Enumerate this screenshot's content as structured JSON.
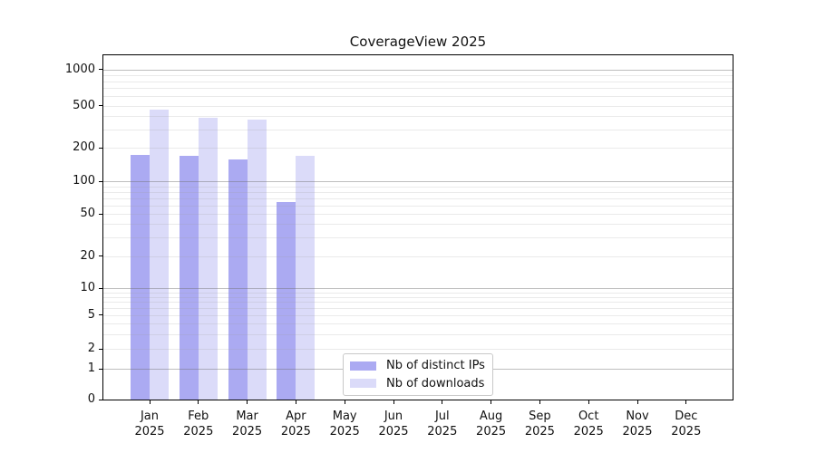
{
  "title": "CoverageView 2025",
  "chart_data": {
    "type": "bar",
    "title": "CoverageView 2025",
    "year": "2025",
    "categories": [
      "Jan",
      "Feb",
      "Mar",
      "Apr",
      "May",
      "Jun",
      "Jul",
      "Aug",
      "Sep",
      "Oct",
      "Nov",
      "Dec"
    ],
    "series": [
      {
        "name": "Nb of distinct IPs",
        "color": "#abaaf2",
        "values": [
          172,
          170,
          158,
          64,
          null,
          null,
          null,
          null,
          null,
          null,
          null,
          null
        ]
      },
      {
        "name": "Nb of downloads",
        "color": "#dbdbf9",
        "values": [
          462,
          385,
          372,
          170,
          null,
          null,
          null,
          null,
          null,
          null,
          null,
          null
        ]
      }
    ],
    "yticks": [
      0,
      1,
      2,
      5,
      10,
      20,
      50,
      100,
      200,
      500,
      1000
    ],
    "major_gridlines": [
      1,
      10,
      100,
      1000
    ],
    "minor_gridlines": [
      2,
      3,
      4,
      5,
      6,
      7,
      8,
      9,
      20,
      30,
      40,
      50,
      60,
      70,
      80,
      90,
      200,
      300,
      400,
      500,
      600,
      700,
      800,
      900
    ],
    "yscale": "log-like (linear 0-1, log above)",
    "ylim": [
      0,
      1250
    ],
    "xlabel": "",
    "ylabel": "",
    "grid": "horizontal major+minor, drawn over bars",
    "legend_position": "inside axes, bottom center-left"
  },
  "colors": {
    "bar_distinct_ips": "#abaaf2",
    "bar_downloads": "#dbdbf9",
    "major_grid": "#b5b5b5",
    "minor_grid": "#e6e6e6",
    "axis": "#000000",
    "text": "#111111",
    "legend_border": "#c9c9c9",
    "background": "#ffffff"
  }
}
